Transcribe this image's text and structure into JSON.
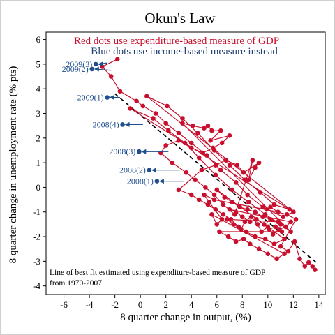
{
  "chart_data": {
    "type": "scatter",
    "title": "Okun's Law",
    "subtitle_red": "Red dots use expenditure-based measure of GDP",
    "subtitle_blue": "Blue dots use income-based measure instead",
    "xlabel": "8 quarter change in output, (%)",
    "ylabel": "8 quarter change in unemployment rate (% pts)",
    "xlim": [
      -7.4,
      14.5
    ],
    "ylim": [
      -4.35,
      6.3
    ],
    "x_ticks": [
      -6,
      -4,
      -2,
      0,
      2,
      4,
      6,
      8,
      10,
      12,
      14
    ],
    "y_ticks": [
      -4,
      -3,
      -2,
      -1,
      0,
      1,
      2,
      3,
      4,
      5,
      6
    ],
    "footnote": [
      "Line of best fit estimated using expenditure-based measure of GDP",
      "from 1970-2007"
    ],
    "colors": {
      "expenditure": "#c8102e",
      "income": "#1f4e8c",
      "fit": "#000000"
    },
    "fit_line": {
      "x": [
        -2.0,
        13.8
      ],
      "y": [
        3.8,
        -3.05
      ]
    },
    "series": [
      {
        "name": "Red dots use expenditure-based measure of GDP",
        "values": [
          [
            -1.8,
            5.2
          ],
          [
            -3.0,
            4.9
          ],
          [
            -2.3,
            4.5
          ],
          [
            -1.6,
            3.9
          ],
          [
            -0.3,
            3.5
          ],
          [
            0.2,
            3.3
          ],
          [
            1.2,
            3.0
          ],
          [
            2.0,
            2.6
          ],
          [
            3.0,
            2.2
          ],
          [
            4.0,
            1.8
          ],
          [
            5.2,
            1.3
          ],
          [
            6.3,
            0.7
          ],
          [
            7.5,
            0.2
          ],
          [
            8.4,
            -0.3
          ],
          [
            9.6,
            -0.8
          ],
          [
            11.2,
            -1.2
          ],
          [
            12.0,
            -1.0
          ],
          [
            0.5,
            3.7
          ],
          [
            2.1,
            3.3
          ],
          [
            3.3,
            2.8
          ],
          [
            4.5,
            2.2
          ],
          [
            5.8,
            1.5
          ],
          [
            7.0,
            0.9
          ],
          [
            8.2,
            0.3
          ],
          [
            9.4,
            -0.2
          ],
          [
            10.5,
            -0.7
          ],
          [
            11.7,
            -0.9
          ],
          [
            -0.8,
            3.2
          ],
          [
            1.0,
            2.8
          ],
          [
            2.2,
            2.3
          ],
          [
            3.5,
            1.8
          ],
          [
            4.6,
            1.2
          ],
          [
            5.9,
            0.5
          ],
          [
            7.2,
            -0.1
          ],
          [
            8.5,
            -0.6
          ],
          [
            9.8,
            -1.1
          ],
          [
            11.0,
            -1.5
          ],
          [
            11.8,
            -1.8
          ],
          [
            3.3,
            2.6
          ],
          [
            4.1,
            2.5
          ],
          [
            5.0,
            2.4
          ],
          [
            5.3,
            2.5
          ],
          [
            5.6,
            2.3
          ],
          [
            6.3,
            2.3
          ],
          [
            5.5,
            1.9
          ],
          [
            7.0,
            2.1
          ],
          [
            6.4,
            1.8
          ],
          [
            5.7,
            1.6
          ],
          [
            4.9,
            1.4
          ],
          [
            4.0,
            1.6
          ],
          [
            3.0,
            1.9
          ],
          [
            2.0,
            1.7
          ],
          [
            1.6,
            1.4
          ],
          [
            2.5,
            1.0
          ],
          [
            3.6,
            0.6
          ],
          [
            4.3,
            0.3
          ],
          [
            5.1,
            0.0
          ],
          [
            5.8,
            -0.3
          ],
          [
            6.5,
            -0.7
          ],
          [
            7.4,
            -1.1
          ],
          [
            8.8,
            1.1
          ],
          [
            8.5,
            0.3
          ],
          [
            9.0,
            0.8
          ],
          [
            9.3,
            1.0
          ],
          [
            8.1,
            0.6
          ],
          [
            7.6,
            0.9
          ],
          [
            6.7,
            1.1
          ],
          [
            5.9,
            0.9
          ],
          [
            4.8,
            0.7
          ],
          [
            3.0,
            -0.1
          ],
          [
            4.0,
            -0.3
          ],
          [
            4.6,
            -0.5
          ],
          [
            5.3,
            -0.7
          ],
          [
            5.9,
            -0.9
          ],
          [
            6.5,
            -1.1
          ],
          [
            7.1,
            -1.3
          ],
          [
            7.7,
            -1.6
          ],
          [
            8.3,
            -1.8
          ],
          [
            9.0,
            -2.0
          ],
          [
            9.8,
            -2.1
          ],
          [
            10.5,
            -2.3
          ],
          [
            11.3,
            -2.1
          ],
          [
            6.0,
            -0.1
          ],
          [
            6.6,
            -0.4
          ],
          [
            7.2,
            -0.6
          ],
          [
            7.8,
            -0.8
          ],
          [
            8.4,
            -0.9
          ],
          [
            9.0,
            -1.0
          ],
          [
            9.6,
            -1.2
          ],
          [
            10.2,
            -1.3
          ],
          [
            10.8,
            -1.4
          ],
          [
            6.8,
            -1.3
          ],
          [
            7.3,
            -1.5
          ],
          [
            7.9,
            -1.7
          ],
          [
            8.2,
            -1.4
          ],
          [
            8.7,
            -1.2
          ],
          [
            9.2,
            -1.5
          ],
          [
            9.5,
            -1.8
          ],
          [
            10.0,
            -1.6
          ],
          [
            10.4,
            -1.9
          ],
          [
            10.9,
            -1.7
          ],
          [
            11.4,
            -1.6
          ],
          [
            11.8,
            -1.4
          ],
          [
            7.0,
            -0.9
          ],
          [
            7.5,
            -1.0
          ],
          [
            8.0,
            -1.2
          ],
          [
            8.6,
            -1.4
          ],
          [
            9.1,
            -1.3
          ],
          [
            9.7,
            -1.5
          ],
          [
            10.1,
            -1.7
          ],
          [
            10.6,
            -1.6
          ],
          [
            11.1,
            -1.8
          ],
          [
            6.2,
            -1.8
          ],
          [
            6.9,
            -2.0
          ],
          [
            7.5,
            -2.2
          ],
          [
            8.1,
            -2.1
          ],
          [
            8.6,
            -2.3
          ],
          [
            9.3,
            -2.5
          ],
          [
            10.0,
            -2.7
          ],
          [
            10.7,
            -2.9
          ],
          [
            11.3,
            -2.7
          ],
          [
            5.6,
            -1.1
          ],
          [
            6.0,
            -1.5
          ],
          [
            6.4,
            -1.3
          ],
          [
            5.4,
            -0.6
          ],
          [
            5.0,
            -0.3
          ],
          [
            5.8,
            -0.5
          ],
          [
            10.8,
            -1.0
          ],
          [
            10.2,
            -0.8
          ],
          [
            9.9,
            -0.9
          ],
          [
            11.5,
            -1.1
          ],
          [
            12.2,
            -1.3
          ],
          [
            11.0,
            -2.4
          ],
          [
            11.6,
            -2.6
          ],
          [
            12.1,
            -2.2
          ],
          [
            12.5,
            -2.9
          ],
          [
            12.9,
            -3.2
          ],
          [
            13.2,
            -3.05
          ],
          [
            13.5,
            -3.2
          ],
          [
            13.7,
            -3.35
          ]
        ]
      },
      {
        "name": "Blue dots use income-based measure instead",
        "values": [
          [
            -3.5,
            5.0
          ],
          [
            -3.8,
            4.8
          ],
          [
            -2.6,
            3.65
          ],
          [
            -1.4,
            2.55
          ],
          [
            -0.1,
            1.45
          ],
          [
            0.7,
            0.7
          ],
          [
            1.3,
            0.25
          ]
        ]
      }
    ],
    "annotations": [
      {
        "label": "2009(3)",
        "x": -3.5,
        "y": 5.0,
        "to_x": -2.6,
        "to_y": 5.05
      },
      {
        "label": "2009(2)",
        "x": -3.8,
        "y": 4.8,
        "to_x": -2.3,
        "to_y": 4.75
      },
      {
        "label": "2009(1)",
        "x": -2.6,
        "y": 3.65,
        "to_x": -1.6,
        "to_y": 3.65
      },
      {
        "label": "2008(4)",
        "x": -1.4,
        "y": 2.55,
        "to_x": 0.2,
        "to_y": 2.55
      },
      {
        "label": "2008(3)",
        "x": -0.1,
        "y": 1.45,
        "to_x": 2.2,
        "to_y": 1.45
      },
      {
        "label": "2008(2)",
        "x": 0.7,
        "y": 0.7,
        "to_x": 3.1,
        "to_y": 0.7
      },
      {
        "label": "2008(1)",
        "x": 1.3,
        "y": 0.25,
        "to_x": 3.4,
        "to_y": 0.25
      }
    ]
  }
}
